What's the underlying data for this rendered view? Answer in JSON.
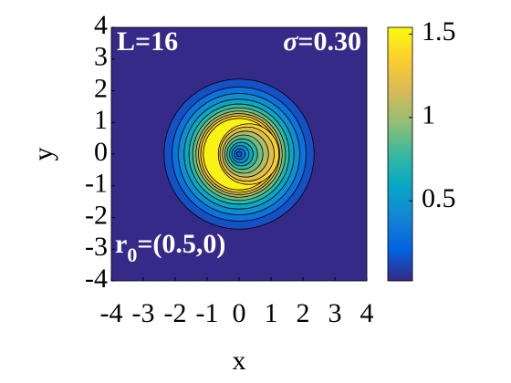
{
  "chart_data": {
    "type": "contour",
    "xlabel": "x",
    "ylabel": "y",
    "xlim": [
      -4,
      4
    ],
    "ylim": [
      -4,
      4
    ],
    "xticks": [
      -4,
      -3,
      -2,
      -1,
      0,
      1,
      2,
      3,
      4
    ],
    "yticks": [
      -4,
      -3,
      -2,
      -1,
      0,
      1,
      2,
      3,
      4
    ],
    "annotations": {
      "top_left": "L=16",
      "top_right": [
        "σ",
        "=0.30"
      ],
      "bottom_left": [
        "r",
        "0",
        "=(0.5,0)"
      ]
    },
    "colormap": [
      "#352a87",
      "#0363e1",
      "#1485d4",
      "#06a7c6",
      "#38b99e",
      "#92bf73",
      "#d9ba56",
      "#fcce2e",
      "#f9fb0e"
    ],
    "clim": [
      0.02,
      1.54
    ],
    "colorbar_ticks": [
      0.5,
      1,
      1.5
    ],
    "regions": [
      {
        "level": 0.15,
        "x": 0,
        "y": 0,
        "r": 2.35
      },
      {
        "level": 0.3,
        "x": 0,
        "y": 0,
        "r": 2.1
      },
      {
        "level": 0.45,
        "x": 0,
        "y": 0,
        "r": 1.9
      },
      {
        "level": 0.6,
        "x": 0,
        "y": 0,
        "r": 1.72
      },
      {
        "level": 0.75,
        "x": 0,
        "y": 0,
        "r": 1.57
      },
      {
        "level": 0.9,
        "x": 0,
        "y": 0,
        "r": 1.45
      },
      {
        "level": 1.05,
        "x": 0,
        "y": 0,
        "r": 1.35
      },
      {
        "level": 1.2,
        "x": 0,
        "y": 0,
        "r": 1.27
      },
      {
        "level": 1.35,
        "x": 0,
        "y": 0,
        "r": 1.2
      },
      {
        "level": 1.5,
        "x": 0,
        "y": 0,
        "r": 1.12
      },
      {
        "level": 1.35,
        "x": 0.3,
        "y": 0,
        "r": 0.95
      },
      {
        "level": 1.2,
        "x": 0.25,
        "y": 0,
        "r": 0.85
      },
      {
        "level": 1.05,
        "x": 0.2,
        "y": 0,
        "r": 0.72
      },
      {
        "level": 0.9,
        "x": 0.15,
        "y": 0,
        "r": 0.6
      },
      {
        "level": 0.75,
        "x": 0.1,
        "y": 0,
        "r": 0.48
      },
      {
        "level": 0.6,
        "x": 0.07,
        "y": 0,
        "r": 0.37
      },
      {
        "level": 0.45,
        "x": 0.04,
        "y": 0,
        "r": 0.27
      },
      {
        "level": 0.3,
        "x": 0.02,
        "y": 0,
        "r": 0.17
      },
      {
        "level": 0.15,
        "x": 0,
        "y": 0,
        "r": 0.08
      }
    ]
  }
}
